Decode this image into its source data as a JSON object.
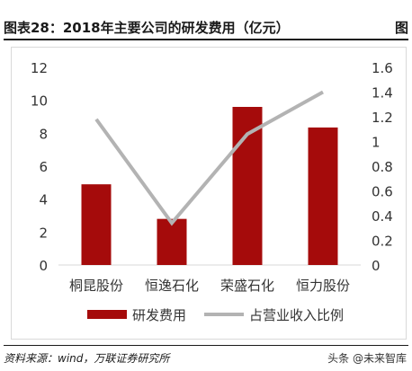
{
  "header": {
    "title": "图表28：2018年主要公司的研发费用（亿元）",
    "figure_label": "图"
  },
  "chart_data": {
    "type": "bar",
    "categories": [
      "桐昆股份",
      "恒逸石化",
      "荣盛石化",
      "恒力股份"
    ],
    "series": [
      {
        "name": "研发费用",
        "type": "bar",
        "axis": "left",
        "values": [
          4.9,
          2.8,
          9.6,
          8.35
        ],
        "color": "#a50b0b"
      },
      {
        "name": "占营业收入比例",
        "type": "line",
        "axis": "right",
        "values": [
          1.18,
          0.34,
          1.06,
          1.4
        ],
        "color": "#b3b3b3"
      }
    ],
    "y_left": {
      "ylim": [
        0,
        12
      ],
      "ticks": [
        "0",
        "2",
        "4",
        "6",
        "8",
        "10",
        "12"
      ]
    },
    "y_right": {
      "ylim": [
        0,
        1.6
      ],
      "ticks": [
        "0",
        "0.2",
        "0.4",
        "0.6",
        "0.8",
        "1",
        "1.2",
        "1.4",
        "1.6"
      ]
    },
    "legend_position": "bottom"
  },
  "footer": {
    "source": "资料来源：wind，万联证券研究所",
    "watermark": "头条 @未来智库"
  }
}
